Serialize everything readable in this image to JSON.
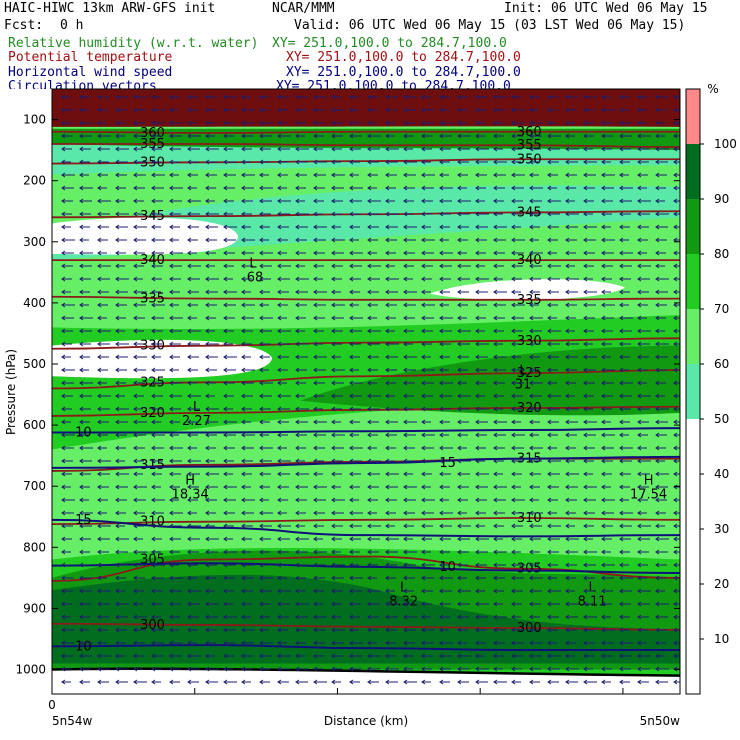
{
  "header": {
    "model": "HAIC-HIWC 13km ARW-GFS init",
    "org": "NCAR/MMM",
    "init": "Init: 06 UTC Wed 06 May 15",
    "fcst_label": "Fcst:",
    "fcst_value": "0 h",
    "valid": "Valid: 06 UTC Wed 06 May 15 (03 LST Wed 06 May 15)",
    "fields": [
      {
        "name": "Relative humidity (w.r.t. water)",
        "xy": "XY= 251.0,100.0 to 284.7,100.0",
        "color": "#228b22"
      },
      {
        "name": "Potential temperature",
        "xy": "XY= 251.0,100.0 to 284.7,100.0",
        "color": "#a01010"
      },
      {
        "name": "Horizontal wind speed",
        "xy": "XY= 251.0,100.0 to 284.7,100.0",
        "color": "#000080"
      },
      {
        "name": "Circulation vectors",
        "xy": "XY= 251.0,100.0 to 284.7,100.0",
        "color": "#000080"
      }
    ]
  },
  "chart_data": {
    "type": "heatmap",
    "xlabel": "Distance (km)",
    "ylabel": "Pressure (hPa)",
    "x_tick_labels": [
      "0"
    ],
    "x_end_labels": [
      "5n54w",
      "5n50w"
    ],
    "y_ticks": [
      100,
      200,
      300,
      400,
      500,
      600,
      700,
      800,
      900,
      1000
    ],
    "ylim": [
      1040,
      50
    ],
    "colorbar": {
      "unit": "%",
      "ticks": [
        10,
        20,
        30,
        40,
        50,
        60,
        70,
        80,
        90,
        100
      ],
      "colors": [
        "#ffffff",
        "#ffffff",
        "#ffffff",
        "#ffffff",
        "#ffffff",
        "#5ae8a8",
        "#66ef66",
        "#22cc22",
        "#119911",
        "#006e1e",
        "#ff8888"
      ]
    },
    "theta_contours": [
      {
        "label": "300",
        "p": [
          925,
          927,
          930,
          932,
          935
        ]
      },
      {
        "label": "305",
        "p": [
          855,
          820,
          815,
          835,
          850
        ]
      },
      {
        "label": "310",
        "p": [
          762,
          758,
          755,
          752,
          755
        ]
      },
      {
        "label": "315",
        "p": [
          675,
          665,
          660,
          655,
          655
        ]
      },
      {
        "label": "320",
        "p": [
          585,
          580,
          575,
          572,
          570
        ]
      },
      {
        "label": "325",
        "p": [
          540,
          530,
          520,
          515,
          510
        ]
      },
      {
        "label": "330",
        "p": [
          475,
          470,
          465,
          462,
          458
        ]
      },
      {
        "label": "335",
        "p": [
          390,
          393,
          395,
          395,
          393
        ]
      },
      {
        "label": "340",
        "p": [
          330,
          330,
          330,
          330,
          330
        ]
      },
      {
        "label": "345",
        "p": [
          260,
          258,
          255,
          252,
          250
        ]
      },
      {
        "label": "350",
        "p": [
          172,
          170,
          168,
          165,
          165
        ]
      },
      {
        "label": "355",
        "p": [
          140,
          140,
          142,
          142,
          145
        ]
      },
      {
        "label": "360",
        "p": [
          120,
          122,
          120,
          120,
          120
        ]
      }
    ],
    "wind_contours": [
      {
        "label": "10",
        "p": [
          612,
          612,
          610,
          608,
          605
        ]
      },
      {
        "label": "15",
        "p": [
          670,
          668,
          662,
          655,
          652
        ]
      },
      {
        "label": "15",
        "p": [
          755,
          768,
          780,
          782,
          780
        ]
      },
      {
        "label": "10",
        "p": [
          830,
          826,
          832,
          838,
          842
        ]
      },
      {
        "label": "10",
        "p": [
          962,
          960,
          965,
          968,
          968
        ]
      }
    ],
    "extrema": [
      {
        "type": "L",
        "value": ".68",
        "x": 0.32,
        "p": 355
      },
      {
        "type": "L",
        "value": "31",
        "x": 0.75,
        "p": 530
      },
      {
        "type": "L",
        "value": "2.27",
        "x": 0.23,
        "p": 590
      },
      {
        "type": "H",
        "value": "18.34",
        "x": 0.22,
        "p": 710
      },
      {
        "type": "H",
        "value": "17.54",
        "x": 0.95,
        "p": 710
      },
      {
        "type": "L",
        "value": "8.32",
        "x": 0.56,
        "p": 885
      },
      {
        "type": "L",
        "value": "8.11",
        "x": 0.86,
        "p": 885
      }
    ]
  }
}
